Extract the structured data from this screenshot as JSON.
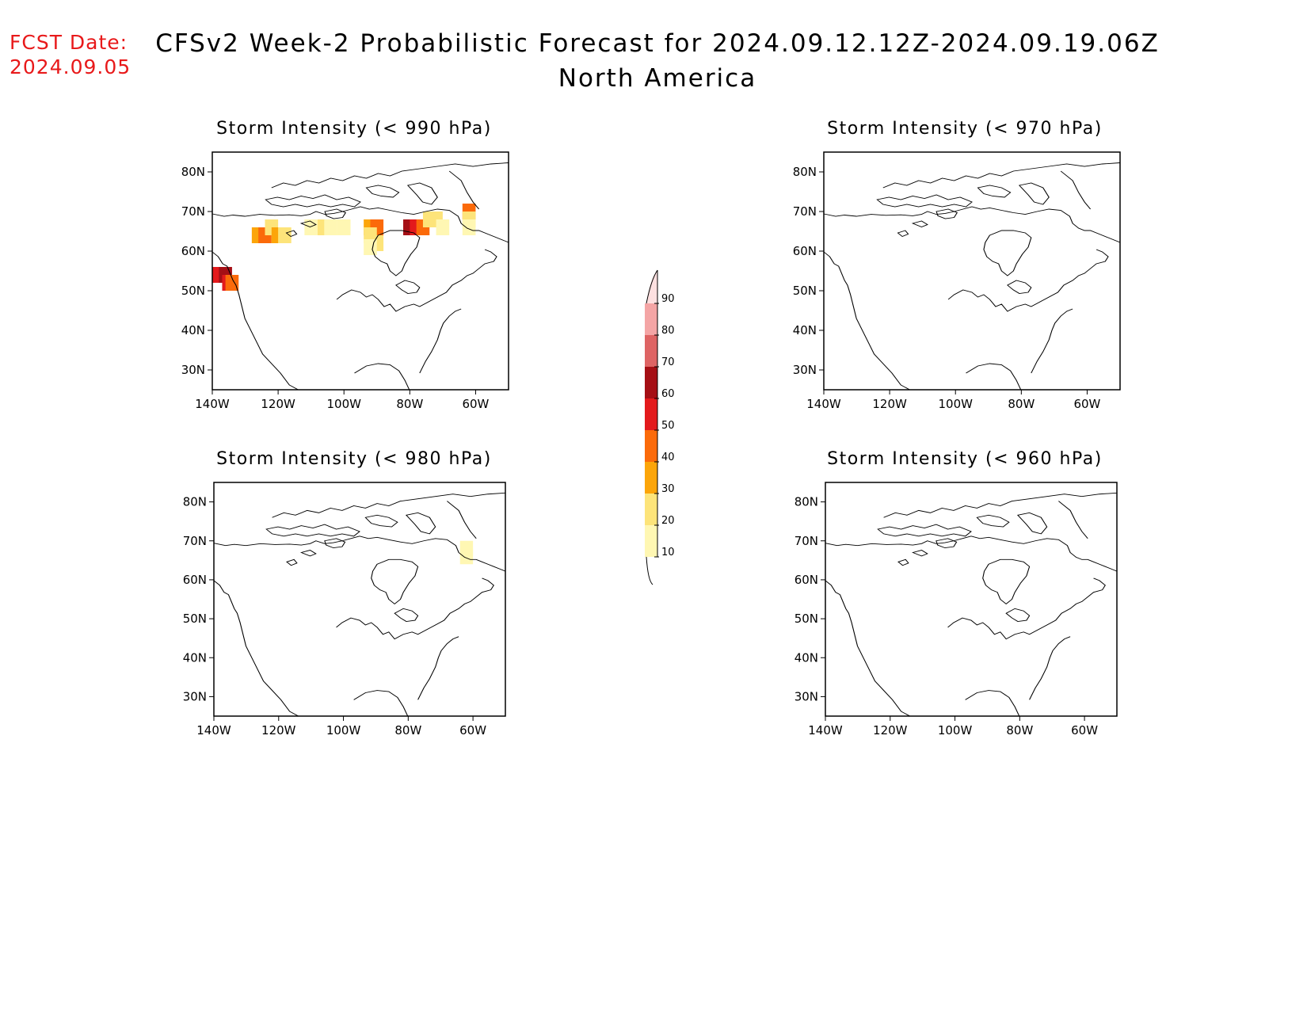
{
  "header": {
    "fcst_label": "FCST Date:",
    "fcst_date": "2024.09.05",
    "title_line1": "CFSv2 Week-2 Probabilistic Forecast for 2024.09.12.12Z-2024.09.19.06Z",
    "title_line2": "North America"
  },
  "axes": {
    "lon_ticks": [
      "140W",
      "120W",
      "100W",
      "80W",
      "60W"
    ],
    "lat_ticks": [
      "80N",
      "70N",
      "60N",
      "50N",
      "40N",
      "30N"
    ],
    "lon_range": [
      -140,
      -50
    ],
    "lat_range": [
      25,
      85
    ]
  },
  "panels": [
    {
      "id": "990",
      "title": "Storm Intensity (< 990 hPa)"
    },
    {
      "id": "970",
      "title": "Storm Intensity (< 970 hPa)"
    },
    {
      "id": "980",
      "title": "Storm Intensity (< 980 hPa)"
    },
    {
      "id": "960",
      "title": "Storm Intensity (< 960 hPa)"
    }
  ],
  "colorbar": {
    "levels": [
      "10",
      "20",
      "30",
      "40",
      "50",
      "60",
      "70",
      "80",
      "90"
    ],
    "colors": [
      "#fff7b3",
      "#fde47a",
      "#fca50a",
      "#fb6a0a",
      "#e31a1c",
      "#a50f15",
      "#de6464",
      "#f4a5a5",
      "#fde0e0"
    ]
  },
  "chart_data": {
    "type": "heatmap",
    "units": "probability (%)",
    "panels": [
      {
        "id": "990",
        "cells": [
          {
            "lon": -138,
            "lat": 54,
            "value": 50
          },
          {
            "lon": -136,
            "lat": 54,
            "value": 60
          },
          {
            "lon": -135,
            "lat": 52,
            "value": 50
          },
          {
            "lon": -134,
            "lat": 52,
            "value": 40
          },
          {
            "lon": -126,
            "lat": 64,
            "value": 30
          },
          {
            "lon": -124,
            "lat": 64,
            "value": 40
          },
          {
            "lon": -122,
            "lat": 66,
            "value": 20
          },
          {
            "lon": -120,
            "lat": 64,
            "value": 30
          },
          {
            "lon": -118,
            "lat": 64,
            "value": 20
          },
          {
            "lon": -110,
            "lat": 66,
            "value": 10
          },
          {
            "lon": -106,
            "lat": 66,
            "value": 20
          },
          {
            "lon": -104,
            "lat": 66,
            "value": 10
          },
          {
            "lon": -100,
            "lat": 66,
            "value": 10
          },
          {
            "lon": -92,
            "lat": 66,
            "value": 30
          },
          {
            "lon": -90,
            "lat": 66,
            "value": 40
          },
          {
            "lon": -92,
            "lat": 64,
            "value": 20
          },
          {
            "lon": -90,
            "lat": 62,
            "value": 20
          },
          {
            "lon": -92,
            "lat": 61,
            "value": 10
          },
          {
            "lon": -80,
            "lat": 66,
            "value": 60
          },
          {
            "lon": -78,
            "lat": 66,
            "value": 50
          },
          {
            "lon": -76,
            "lat": 66,
            "value": 40
          },
          {
            "lon": -74,
            "lat": 68,
            "value": 20
          },
          {
            "lon": -72,
            "lat": 68,
            "value": 20
          },
          {
            "lon": -70,
            "lat": 66,
            "value": 10
          },
          {
            "lon": -62,
            "lat": 70,
            "value": 40
          },
          {
            "lon": -62,
            "lat": 68,
            "value": 20
          },
          {
            "lon": -62,
            "lat": 66,
            "value": 10
          }
        ]
      },
      {
        "id": "970",
        "cells": []
      },
      {
        "id": "980",
        "cells": [
          {
            "lon": -62,
            "lat": 68,
            "value": 10
          },
          {
            "lon": -62,
            "lat": 66,
            "value": 10
          }
        ]
      },
      {
        "id": "960",
        "cells": []
      }
    ]
  }
}
